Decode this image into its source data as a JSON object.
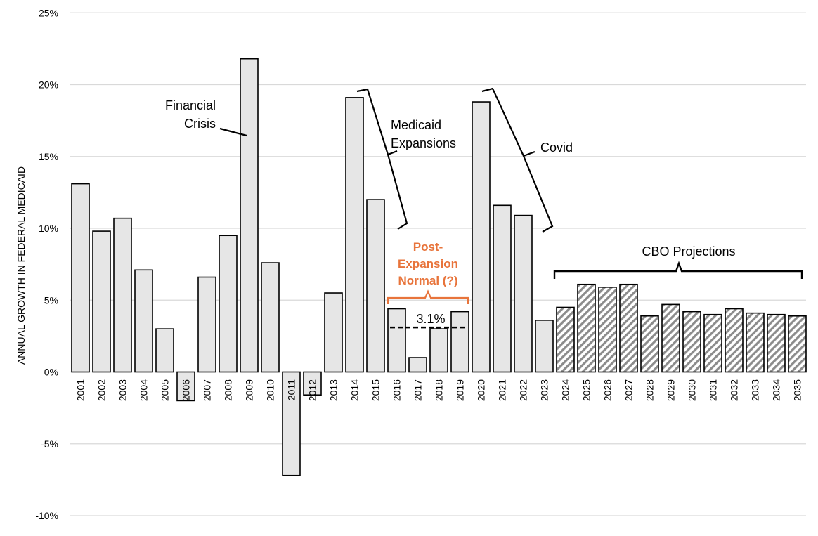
{
  "chart_data": {
    "type": "bar",
    "ylabel": "ANNUAL GROWTH IN FEDERAL MEDICAID",
    "ylim": [
      -10,
      25
    ],
    "yticks": [
      {
        "value": 25,
        "label": "25%"
      },
      {
        "value": 20,
        "label": "20%"
      },
      {
        "value": 15,
        "label": "15%"
      },
      {
        "value": 10,
        "label": "10%"
      },
      {
        "value": 5,
        "label": "5%"
      },
      {
        "value": 0,
        "label": "0%"
      },
      {
        "value": -5,
        "label": "-5%"
      },
      {
        "value": -10,
        "label": "-10%"
      }
    ],
    "grid": true,
    "categories": [
      "2001",
      "2002",
      "2003",
      "2004",
      "2005",
      "2006",
      "2007",
      "2008",
      "2009",
      "2010",
      "2011",
      "2012",
      "2013",
      "2014",
      "2015",
      "2016",
      "2017",
      "2018",
      "2019",
      "2020",
      "2021",
      "2022",
      "2023",
      "2024",
      "2025",
      "2026",
      "2027",
      "2028",
      "2029",
      "2030",
      "2031",
      "2032",
      "2033",
      "2034",
      "2035"
    ],
    "values": [
      13.1,
      9.8,
      10.7,
      7.1,
      3.0,
      -2.0,
      6.6,
      9.5,
      21.8,
      7.6,
      -7.2,
      -1.6,
      5.5,
      19.1,
      12.0,
      4.4,
      1.0,
      3.0,
      4.2,
      18.8,
      11.6,
      10.9,
      3.6,
      4.5,
      6.1,
      5.9,
      6.1,
      3.9,
      4.7,
      4.2,
      4.0,
      4.4,
      4.1,
      4.0,
      3.9
    ],
    "projected_from": "2024",
    "colors": {
      "actual_fill": "#e6e6e6",
      "bar_stroke": "#000000",
      "projection_stripe": "#8c8c8c",
      "orange": "#e8743b",
      "grid": "#d9d9d9"
    },
    "annotations": {
      "financial_crisis": [
        "Financial",
        "Crisis"
      ],
      "medicaid_expansions": [
        "Medicaid",
        "Expansions"
      ],
      "covid": "Covid",
      "post_expansion": [
        "Post-",
        "Expansion",
        "Normal (?)"
      ],
      "average_label": "3.1%",
      "average_value": 3.1,
      "average_range": [
        "2016",
        "2019"
      ],
      "cbo_projections": "CBO Projections"
    }
  }
}
